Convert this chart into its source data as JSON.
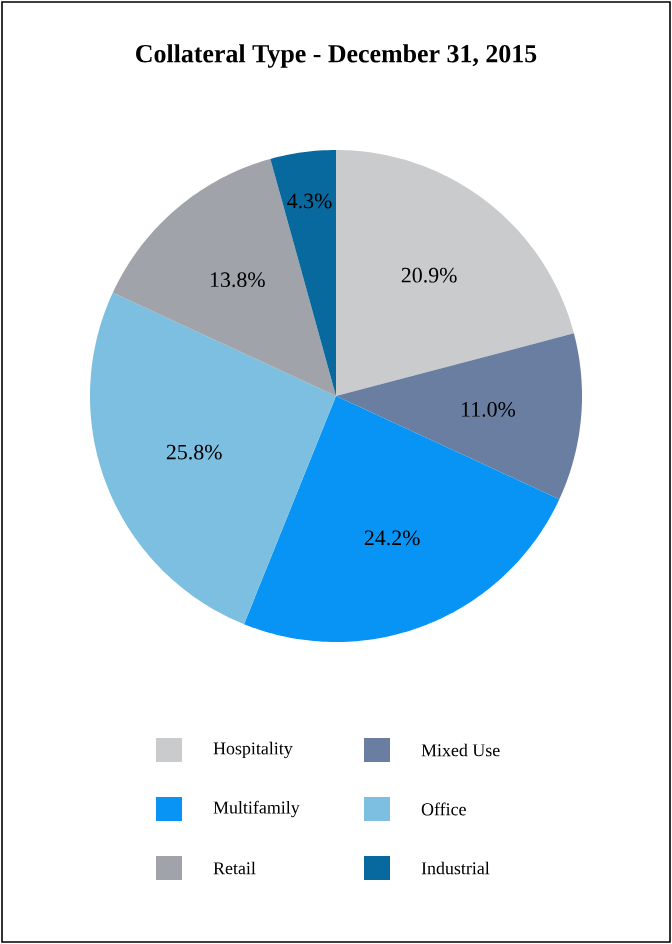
{
  "chart_data": {
    "type": "pie",
    "title": "Collateral Type - December 31, 2015",
    "categories": [
      "Hospitality",
      "Mixed Use",
      "Multifamily",
      "Office",
      "Retail",
      "Industrial"
    ],
    "values": [
      20.9,
      11.0,
      24.2,
      25.8,
      13.8,
      4.3
    ],
    "value_labels": [
      "20.9%",
      "11.0%",
      "24.2%",
      "25.8%",
      "13.8%",
      "4.3%"
    ],
    "colors": [
      "#c9cbcd",
      "#6a7ea2",
      "#0894f4",
      "#7cbfe0",
      "#a0a3aa",
      "#08699f"
    ],
    "legend": "bottom"
  }
}
